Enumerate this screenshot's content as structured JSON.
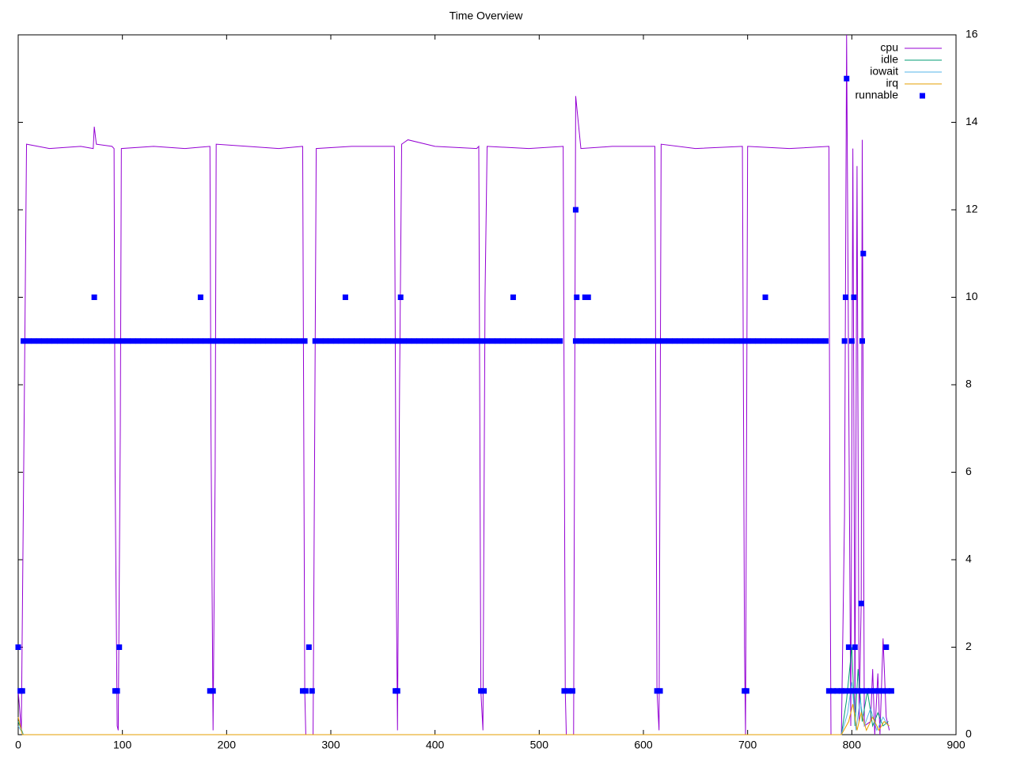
{
  "chart_data": {
    "type": "line",
    "title": "Time Overview",
    "xlim": [
      0,
      900
    ],
    "xticks": [
      0,
      100,
      200,
      300,
      400,
      500,
      600,
      700,
      800,
      900
    ],
    "ylim": [
      0,
      16
    ],
    "yticks": [
      0,
      2,
      4,
      6,
      8,
      10,
      12,
      14,
      16
    ],
    "legend": "top-right",
    "series": [
      {
        "name": "cpu",
        "color": "#9400d3",
        "style": "line",
        "x": [
          0,
          3,
          6,
          8,
          30,
          60,
          72,
          73,
          75,
          90,
          92,
          93,
          95,
          96,
          98,
          99,
          130,
          160,
          184,
          185,
          187,
          189,
          190,
          220,
          250,
          273,
          275,
          276,
          283,
          286,
          320,
          361,
          363,
          364,
          366,
          368,
          374,
          400,
          440,
          442,
          444,
          446,
          448,
          450,
          490,
          523,
          525,
          526,
          533,
          535,
          540,
          570,
          611,
          613,
          615,
          617,
          650,
          695,
          697,
          698,
          700,
          740,
          778,
          779,
          780,
          790,
          793,
          795,
          797,
          799,
          801,
          803,
          805,
          807,
          809,
          810,
          812,
          818,
          820,
          822,
          825,
          827,
          830,
          833,
          836
        ],
        "values": [
          1,
          0.1,
          8,
          13.5,
          13.4,
          13.45,
          13.4,
          13.9,
          13.5,
          13.45,
          13.4,
          6,
          0.2,
          0.1,
          7,
          13.4,
          13.45,
          13.4,
          13.45,
          7,
          0.1,
          6,
          13.5,
          13.45,
          13.4,
          13.45,
          1,
          0,
          0,
          13.4,
          13.45,
          13.45,
          3,
          0.1,
          8,
          13.5,
          13.6,
          13.45,
          13.4,
          13.45,
          1,
          0.1,
          10,
          13.45,
          13.4,
          13.45,
          1,
          0,
          0,
          14.6,
          13.4,
          13.45,
          13.45,
          1,
          0.1,
          13.5,
          13.4,
          13.45,
          2,
          0,
          13.45,
          13.4,
          13.45,
          5,
          0,
          0,
          5,
          16,
          8,
          0.2,
          13.4,
          0.5,
          13,
          0.3,
          3,
          13.6,
          0.2,
          0.3,
          1.5,
          0,
          1.4,
          0,
          2.2,
          0.4,
          0.1
        ]
      },
      {
        "name": "idle",
        "color": "#009e73",
        "style": "line",
        "x": [
          0,
          5,
          10,
          790,
          795,
          800,
          803,
          806,
          810,
          815,
          820,
          825,
          830,
          835
        ],
        "values": [
          0.3,
          0,
          0,
          0,
          0.8,
          2,
          0.2,
          1.5,
          0.3,
          1,
          0.2,
          0.5,
          0.2,
          0.3
        ]
      },
      {
        "name": "iowait",
        "color": "#56b4e9",
        "style": "line",
        "x": [
          0,
          5,
          10,
          790,
          796,
          800,
          804,
          808,
          812,
          818,
          824,
          830,
          835
        ],
        "values": [
          0.2,
          0,
          0,
          0,
          0.5,
          1.2,
          0.1,
          0.8,
          0.2,
          0.6,
          0.1,
          0.4,
          0.2
        ]
      },
      {
        "name": "irq",
        "color": "#e69f00",
        "style": "line",
        "x": [
          0,
          4,
          10,
          790,
          797,
          801,
          805,
          809,
          814,
          820,
          826,
          831,
          836
        ],
        "values": [
          0.4,
          0,
          0,
          0,
          0.3,
          0.7,
          0.1,
          0.5,
          0.1,
          0.4,
          0.1,
          0.3,
          0.2
        ]
      },
      {
        "name": "runnable",
        "color": "#0000ff",
        "style": "points",
        "x": [
          5,
          10,
          15,
          20,
          25,
          30,
          35,
          40,
          45,
          50,
          55,
          60,
          65,
          70,
          75,
          80,
          85,
          90,
          95,
          100,
          105,
          110,
          115,
          120,
          125,
          130,
          135,
          140,
          145,
          150,
          155,
          160,
          165,
          170,
          175,
          180,
          185,
          190,
          195,
          200,
          205,
          210,
          215,
          220,
          225,
          230,
          235,
          240,
          245,
          250,
          255,
          260,
          265,
          270,
          275,
          285,
          290,
          295,
          300,
          305,
          310,
          315,
          320,
          325,
          330,
          335,
          340,
          345,
          350,
          355,
          360,
          365,
          370,
          375,
          380,
          385,
          390,
          395,
          400,
          405,
          410,
          415,
          420,
          425,
          430,
          435,
          440,
          445,
          450,
          455,
          460,
          465,
          470,
          475,
          480,
          485,
          490,
          495,
          500,
          505,
          510,
          515,
          520,
          535,
          540,
          545,
          550,
          555,
          560,
          565,
          570,
          575,
          580,
          585,
          590,
          595,
          600,
          605,
          610,
          615,
          620,
          625,
          630,
          635,
          640,
          645,
          650,
          655,
          660,
          665,
          670,
          675,
          680,
          685,
          690,
          695,
          700,
          705,
          710,
          715,
          720,
          725,
          730,
          735,
          740,
          745,
          750,
          755,
          760,
          765,
          770,
          775,
          0,
          2,
          4,
          73,
          93,
          95,
          97,
          175,
          184,
          187,
          273,
          276,
          279,
          282,
          314,
          362,
          364,
          367,
          444,
          447,
          475,
          524,
          528,
          532,
          535,
          536,
          544,
          547,
          613,
          616,
          697,
          699,
          717,
          793,
          794,
          795,
          797,
          800,
          802,
          803,
          809,
          810,
          811,
          833,
          778,
          782,
          786,
          790,
          794,
          798,
          802,
          806,
          810,
          814,
          818,
          822,
          826,
          830,
          834,
          838
        ],
        "values": [
          9,
          9,
          9,
          9,
          9,
          9,
          9,
          9,
          9,
          9,
          9,
          9,
          9,
          9,
          9,
          9,
          9,
          9,
          9,
          9,
          9,
          9,
          9,
          9,
          9,
          9,
          9,
          9,
          9,
          9,
          9,
          9,
          9,
          9,
          9,
          9,
          9,
          9,
          9,
          9,
          9,
          9,
          9,
          9,
          9,
          9,
          9,
          9,
          9,
          9,
          9,
          9,
          9,
          9,
          9,
          9,
          9,
          9,
          9,
          9,
          9,
          9,
          9,
          9,
          9,
          9,
          9,
          9,
          9,
          9,
          9,
          9,
          9,
          9,
          9,
          9,
          9,
          9,
          9,
          9,
          9,
          9,
          9,
          9,
          9,
          9,
          9,
          9,
          9,
          9,
          9,
          9,
          9,
          9,
          9,
          9,
          9,
          9,
          9,
          9,
          9,
          9,
          9,
          9,
          9,
          9,
          9,
          9,
          9,
          9,
          9,
          9,
          9,
          9,
          9,
          9,
          9,
          9,
          9,
          9,
          9,
          9,
          9,
          9,
          9,
          9,
          9,
          9,
          9,
          9,
          9,
          9,
          9,
          9,
          9,
          9,
          9,
          9,
          9,
          9,
          9,
          9,
          9,
          9,
          9,
          9,
          9,
          9,
          9,
          9,
          9,
          9,
          2,
          1,
          1,
          10,
          1,
          1,
          2,
          10,
          1,
          1,
          1,
          1,
          2,
          1,
          10,
          1,
          1,
          10,
          1,
          1,
          10,
          1,
          1,
          1,
          12,
          10,
          10,
          10,
          1,
          1,
          1,
          1,
          10,
          9,
          10,
          15,
          2,
          9,
          10,
          2,
          3,
          9,
          11,
          2,
          1,
          1,
          1,
          1,
          1,
          1,
          1,
          1,
          1,
          1,
          1,
          1,
          1,
          1,
          1,
          1
        ]
      }
    ]
  }
}
